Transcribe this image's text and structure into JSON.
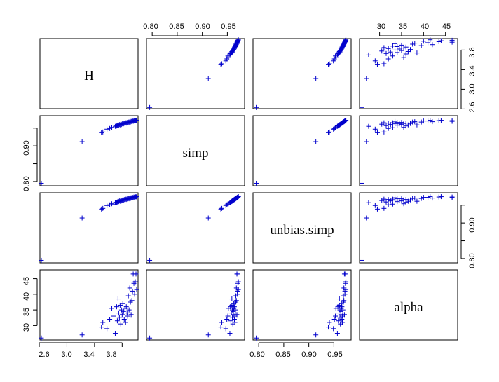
{
  "chart_data": {
    "type": "scatter-matrix",
    "variables": [
      "H",
      "simp",
      "unbias.simp",
      "alpha"
    ],
    "marker": "+",
    "point_color": "#0000cc",
    "axis_ticks": {
      "H": [
        2.6,
        3.0,
        3.4,
        3.8
      ],
      "simp": [
        0.8,
        0.85,
        0.9,
        0.95
      ],
      "unbias.simp": [
        0.8,
        0.85,
        0.9,
        0.95
      ],
      "alpha": [
        30,
        35,
        40,
        45
      ]
    },
    "tick_labels": {
      "H": [
        "2.6",
        "3.0",
        "3.4",
        "3.8"
      ],
      "simp_top": [
        "0.80",
        "0.85",
        "0.90",
        "0.95"
      ],
      "simp_left": [
        "0.80",
        "0.90"
      ],
      "unbias_simp_bottom": [
        "0.80",
        "0.85",
        "0.90",
        "0.95"
      ],
      "unbias_simp_right": [
        "0.80",
        "0.90"
      ],
      "alpha_top": [
        "30",
        "35",
        "40",
        "45"
      ],
      "alpha_left": [
        "30",
        "35",
        "40",
        "45"
      ]
    },
    "ranges": {
      "H": [
        2.62,
        4.02
      ],
      "simp": [
        0.79,
        0.983
      ],
      "unbias.simp": [
        0.79,
        0.983
      ],
      "alpha": [
        25.6,
        47.6
      ]
    },
    "observations": [
      {
        "H": 2.63,
        "simp": 0.795,
        "unbias.simp": 0.795,
        "alpha": 26.0
      },
      {
        "H": 3.22,
        "simp": 0.912,
        "unbias.simp": 0.914,
        "alpha": 27.0
      },
      {
        "H": 3.5,
        "simp": 0.937,
        "unbias.simp": 0.939,
        "alpha": 29.5
      },
      {
        "H": 3.52,
        "simp": 0.939,
        "unbias.simp": 0.941,
        "alpha": 31.0
      },
      {
        "H": 3.58,
        "simp": 0.947,
        "unbias.simp": 0.949,
        "alpha": 29.0
      },
      {
        "H": 3.62,
        "simp": 0.949,
        "unbias.simp": 0.951,
        "alpha": 32.0
      },
      {
        "H": 3.65,
        "simp": 0.952,
        "unbias.simp": 0.954,
        "alpha": 35.5
      },
      {
        "H": 3.68,
        "simp": 0.951,
        "unbias.simp": 0.953,
        "alpha": 33.0
      },
      {
        "H": 3.7,
        "simp": 0.955,
        "unbias.simp": 0.957,
        "alpha": 27.5
      },
      {
        "H": 3.72,
        "simp": 0.956,
        "unbias.simp": 0.958,
        "alpha": 36.0
      },
      {
        "H": 3.73,
        "simp": 0.957,
        "unbias.simp": 0.959,
        "alpha": 31.5
      },
      {
        "H": 3.74,
        "simp": 0.959,
        "unbias.simp": 0.961,
        "alpha": 38.5
      },
      {
        "H": 3.75,
        "simp": 0.958,
        "unbias.simp": 0.96,
        "alpha": 34.0
      },
      {
        "H": 3.76,
        "simp": 0.96,
        "unbias.simp": 0.962,
        "alpha": 32.5
      },
      {
        "H": 3.77,
        "simp": 0.959,
        "unbias.simp": 0.961,
        "alpha": 36.5
      },
      {
        "H": 3.78,
        "simp": 0.961,
        "unbias.simp": 0.963,
        "alpha": 30.5
      },
      {
        "H": 3.79,
        "simp": 0.96,
        "unbias.simp": 0.962,
        "alpha": 35.0
      },
      {
        "H": 3.8,
        "simp": 0.962,
        "unbias.simp": 0.964,
        "alpha": 33.5
      },
      {
        "H": 3.81,
        "simp": 0.963,
        "unbias.simp": 0.965,
        "alpha": 37.0
      },
      {
        "H": 3.82,
        "simp": 0.962,
        "unbias.simp": 0.964,
        "alpha": 34.5
      },
      {
        "H": 3.83,
        "simp": 0.964,
        "unbias.simp": 0.966,
        "alpha": 32.0
      },
      {
        "H": 3.84,
        "simp": 0.963,
        "unbias.simp": 0.965,
        "alpha": 35.5
      },
      {
        "H": 3.85,
        "simp": 0.965,
        "unbias.simp": 0.967,
        "alpha": 31.0
      },
      {
        "H": 3.86,
        "simp": 0.964,
        "unbias.simp": 0.966,
        "alpha": 36.0
      },
      {
        "H": 3.87,
        "simp": 0.966,
        "unbias.simp": 0.968,
        "alpha": 34.0
      },
      {
        "H": 3.88,
        "simp": 0.965,
        "unbias.simp": 0.967,
        "alpha": 33.0
      },
      {
        "H": 3.89,
        "simp": 0.967,
        "unbias.simp": 0.969,
        "alpha": 39.5
      },
      {
        "H": 3.9,
        "simp": 0.966,
        "unbias.simp": 0.968,
        "alpha": 35.0
      },
      {
        "H": 3.91,
        "simp": 0.968,
        "unbias.simp": 0.97,
        "alpha": 42.0
      },
      {
        "H": 3.92,
        "simp": 0.967,
        "unbias.simp": 0.969,
        "alpha": 37.5
      },
      {
        "H": 3.93,
        "simp": 0.969,
        "unbias.simp": 0.971,
        "alpha": 33.5
      },
      {
        "H": 3.94,
        "simp": 0.968,
        "unbias.simp": 0.97,
        "alpha": 38.0
      },
      {
        "H": 3.95,
        "simp": 0.97,
        "unbias.simp": 0.972,
        "alpha": 41.0
      },
      {
        "H": 3.96,
        "simp": 0.969,
        "unbias.simp": 0.971,
        "alpha": 46.5
      },
      {
        "H": 3.97,
        "simp": 0.971,
        "unbias.simp": 0.973,
        "alpha": 43.5
      },
      {
        "H": 3.98,
        "simp": 0.97,
        "unbias.simp": 0.972,
        "alpha": 40.0
      },
      {
        "H": 3.99,
        "simp": 0.972,
        "unbias.simp": 0.974,
        "alpha": 44.0
      },
      {
        "H": 4.0,
        "simp": 0.971,
        "unbias.simp": 0.973,
        "alpha": 46.5
      },
      {
        "H": 4.01,
        "simp": 0.972,
        "unbias.simp": 0.974,
        "alpha": 41.5
      }
    ]
  }
}
